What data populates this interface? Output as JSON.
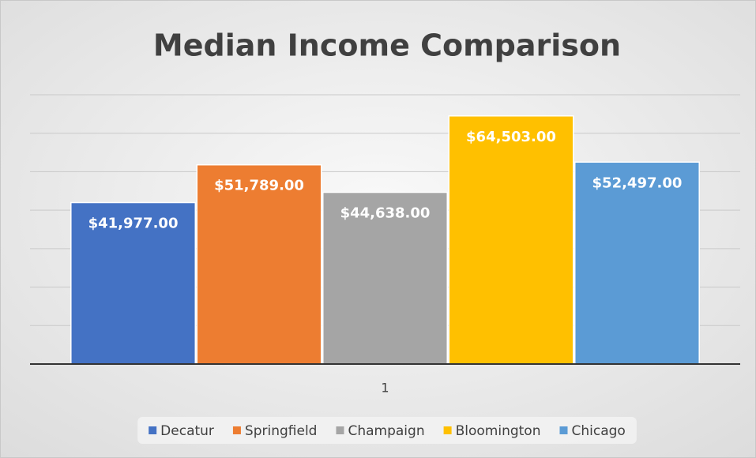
{
  "chart_data": {
    "type": "bar",
    "title": "Median Income Comparison",
    "categories": [
      "1"
    ],
    "series": [
      {
        "name": "Decatur",
        "color": "#4472c4",
        "values": [
          41977
        ],
        "value_labels": [
          "$41,977.00"
        ]
      },
      {
        "name": "Springfield",
        "color": "#ed7d31",
        "values": [
          51789
        ],
        "value_labels": [
          "$51,789.00"
        ]
      },
      {
        "name": "Champaign",
        "color": "#a5a5a5",
        "values": [
          44638
        ],
        "value_labels": [
          "$44,638.00"
        ]
      },
      {
        "name": "Bloomington",
        "color": "#ffc000",
        "values": [
          64503
        ],
        "value_labels": [
          "$64,503.00"
        ]
      },
      {
        "name": "Chicago",
        "color": "#5b9bd5",
        "values": [
          52497
        ],
        "value_labels": [
          "$52,497.00"
        ]
      }
    ],
    "ylim": [
      0,
      70000
    ],
    "yticks": [
      0,
      10000,
      20000,
      30000,
      40000,
      50000,
      60000,
      70000
    ],
    "grid": true,
    "legend": "bottom"
  }
}
